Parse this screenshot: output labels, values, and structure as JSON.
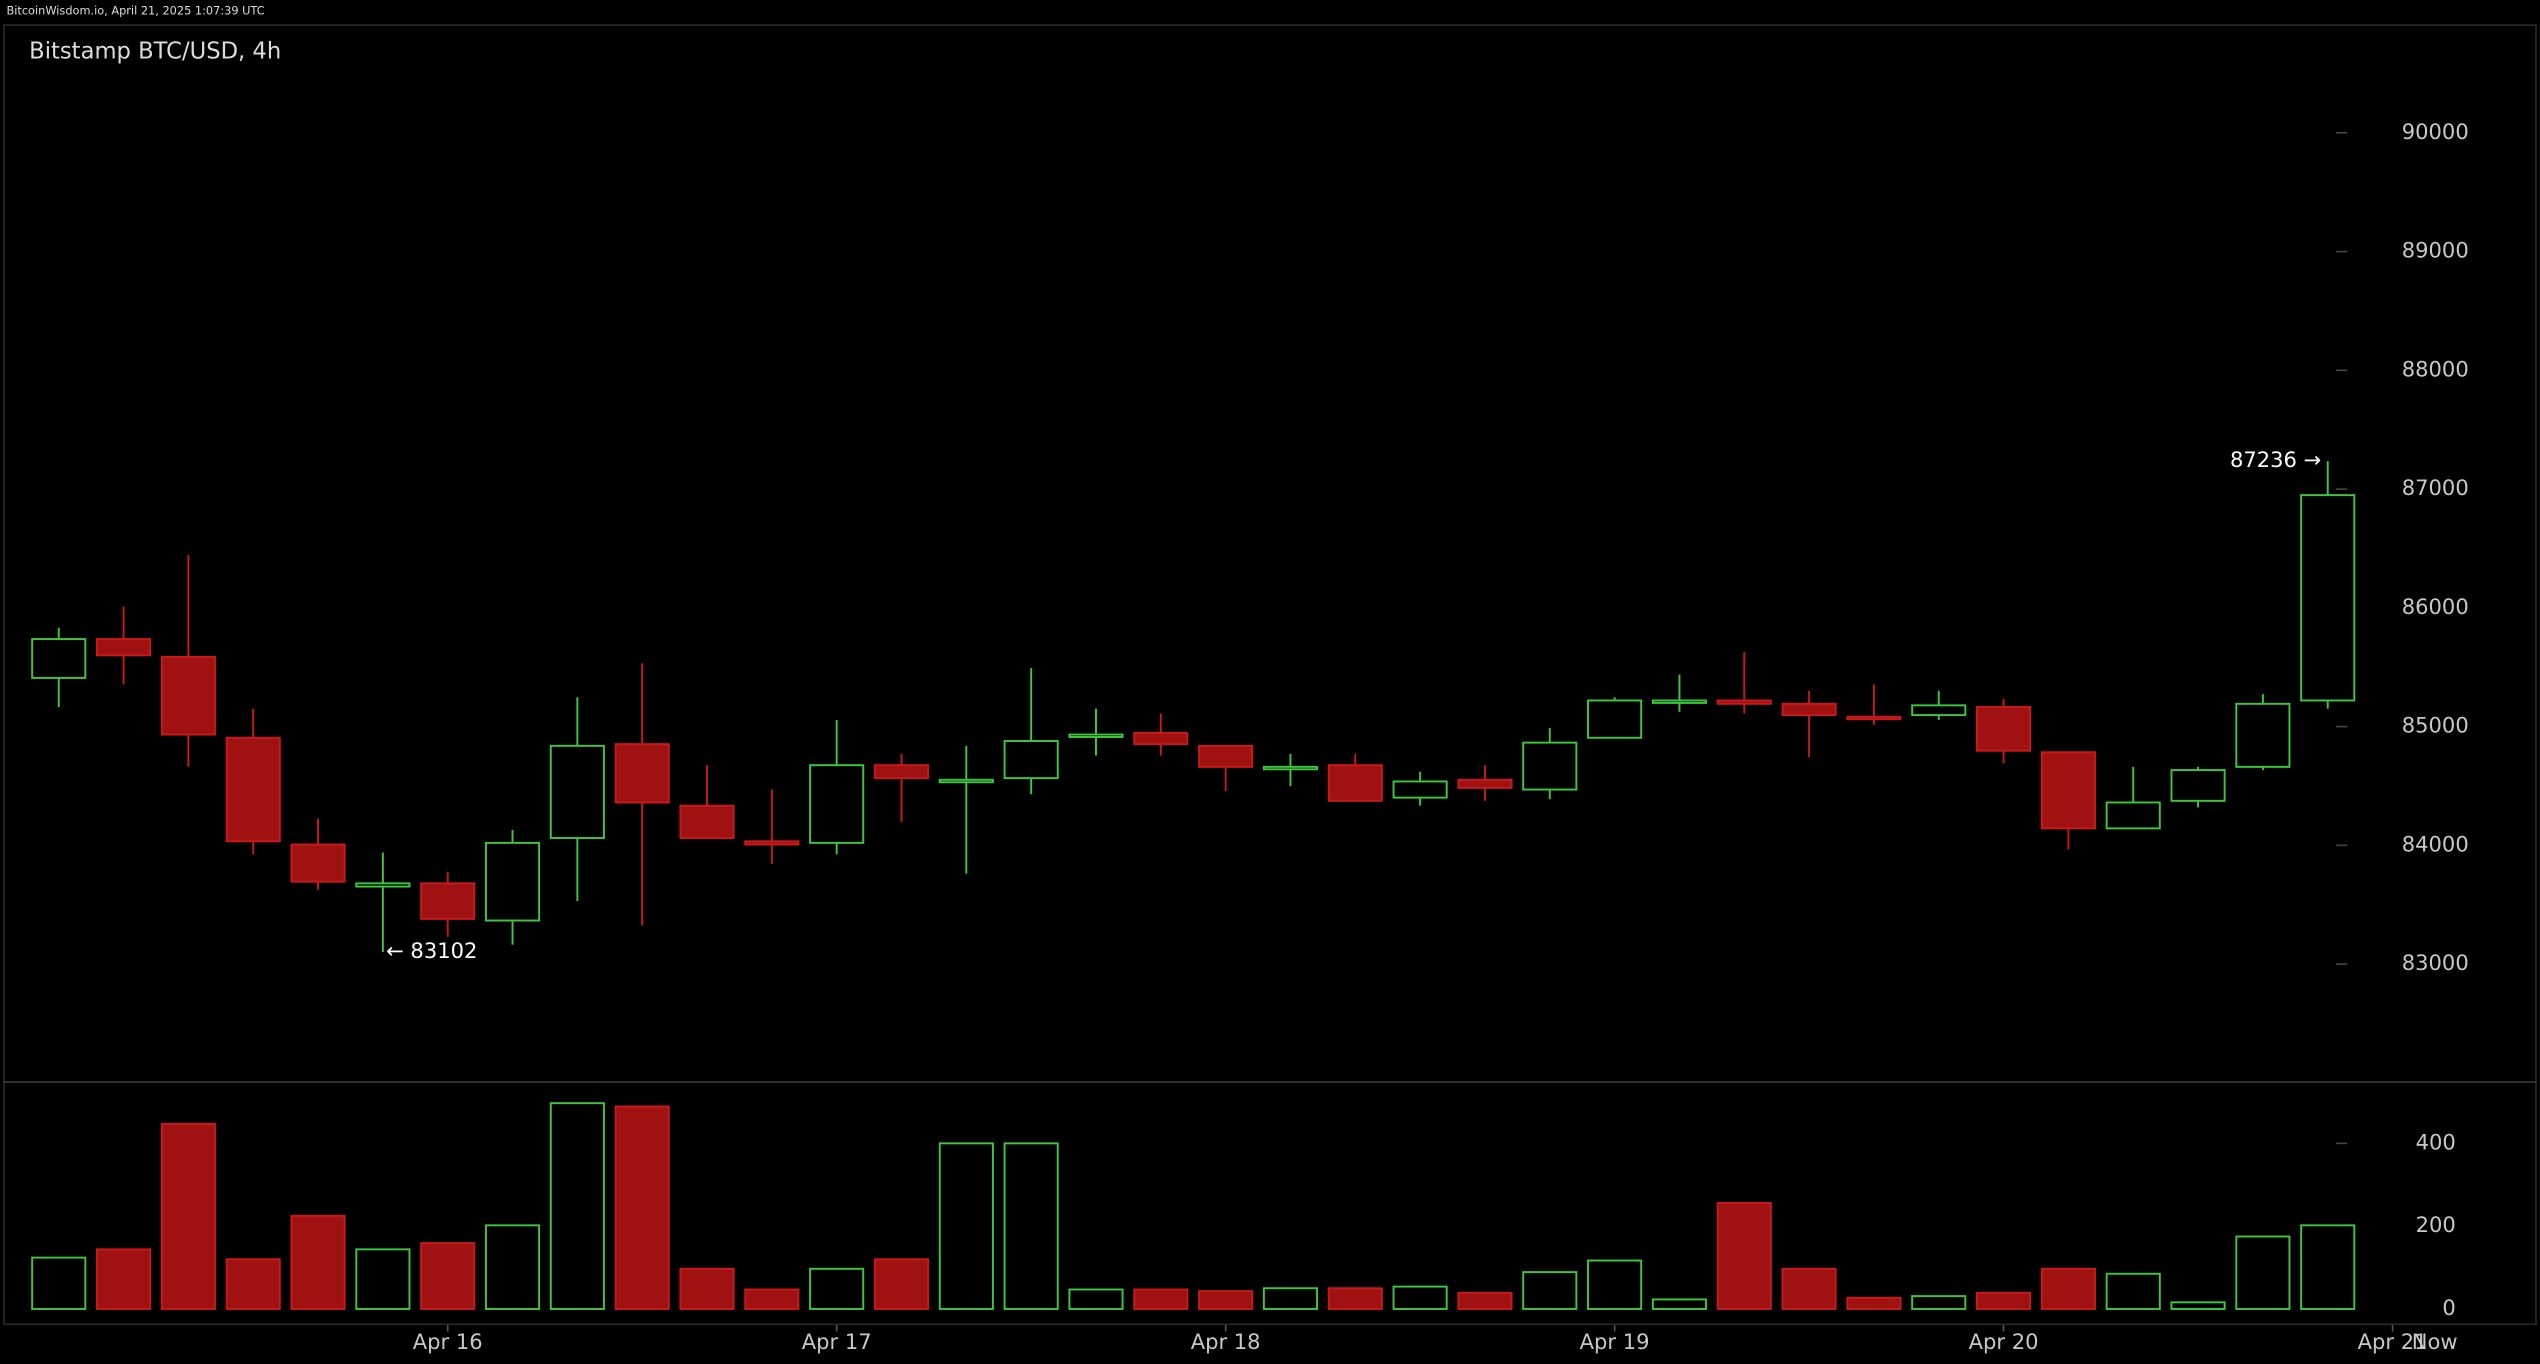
{
  "header": "BitcoinWisdom.io, April 21, 2025 1:07:39 UTC",
  "chart_data": {
    "type": "candlestick",
    "title": "Bitstamp BTC/USD, 4h",
    "up_color": "#3fc63f",
    "down_color": "#a01212",
    "open": [
      85410,
      85737,
      85587,
      84906,
      84007,
      83653,
      83680,
      83367,
      84062,
      84852,
      84334,
      84034,
      84021,
      84675,
      84552,
      84566,
      84933,
      84947,
      84838,
      84661,
      84675,
      84402,
      84552,
      84470,
      84906,
      85220,
      85220,
      85192,
      85083,
      85097,
      85165,
      84784,
      84143,
      84375,
      84661,
      85220
    ],
    "high": [
      85832,
      86010,
      86445,
      85151,
      84225,
      83939,
      83776,
      84130,
      85247,
      85533,
      84675,
      84470,
      85056,
      84770,
      84838,
      85492,
      85151,
      85110,
      84838,
      84770,
      84770,
      84620,
      84675,
      84988,
      85247,
      85437,
      85628,
      85301,
      85356,
      85301,
      85233,
      84784,
      84661,
      84661,
      85274,
      87236
    ],
    "low": [
      85165,
      85356,
      84661,
      83925,
      83626,
      83102,
      83231,
      83163,
      83531,
      83326,
      84062,
      83844,
      83925,
      84198,
      83762,
      84430,
      84756,
      84756,
      84457,
      84498,
      84375,
      84334,
      84375,
      84389,
      84906,
      85124,
      85110,
      84743,
      85015,
      85056,
      84688,
      83966,
      84143,
      84320,
      84634,
      85151
    ],
    "close": [
      85737,
      85600,
      84933,
      84034,
      83694,
      83680,
      83381,
      84021,
      84838,
      84361,
      84062,
      84007,
      84675,
      84566,
      84552,
      84879,
      84933,
      84852,
      84661,
      84661,
      84375,
      84538,
      84484,
      84865,
      85220,
      85220,
      85192,
      85097,
      85070,
      85179,
      84797,
      84143,
      84361,
      84634,
      85192,
      86949
    ],
    "volume": [
      124,
      144,
      447,
      120,
      225,
      144,
      159,
      202,
      497,
      489,
      97,
      47,
      97,
      120,
      400,
      400,
      47,
      47,
      43,
      50,
      50,
      54,
      39,
      89,
      117,
      23,
      256,
      97,
      27,
      31,
      39,
      97,
      85,
      16,
      175,
      202
    ],
    "xlim": [
      -0.5,
      37.5
    ],
    "xticks": [
      {
        "value": 6,
        "label": "Apr 16"
      },
      {
        "value": 12,
        "label": "Apr 17"
      },
      {
        "value": 18,
        "label": "Apr 18"
      },
      {
        "value": 24,
        "label": "Apr 19"
      },
      {
        "value": 30,
        "label": "Apr 20"
      },
      {
        "value": 36,
        "label": "Apr 21"
      }
    ],
    "now_label": "Now",
    "ylim": [
      82020,
      90900
    ],
    "yticks": [
      83000,
      84000,
      85000,
      86000,
      87000,
      88000,
      89000,
      90000
    ],
    "volume_ylim": [
      -39,
      544
    ],
    "volume_yticks": [
      0,
      200,
      400
    ],
    "annotations": [
      {
        "text": "87236 →",
        "value": 87236
      },
      {
        "text": "← 83102",
        "value": 83102
      }
    ]
  }
}
